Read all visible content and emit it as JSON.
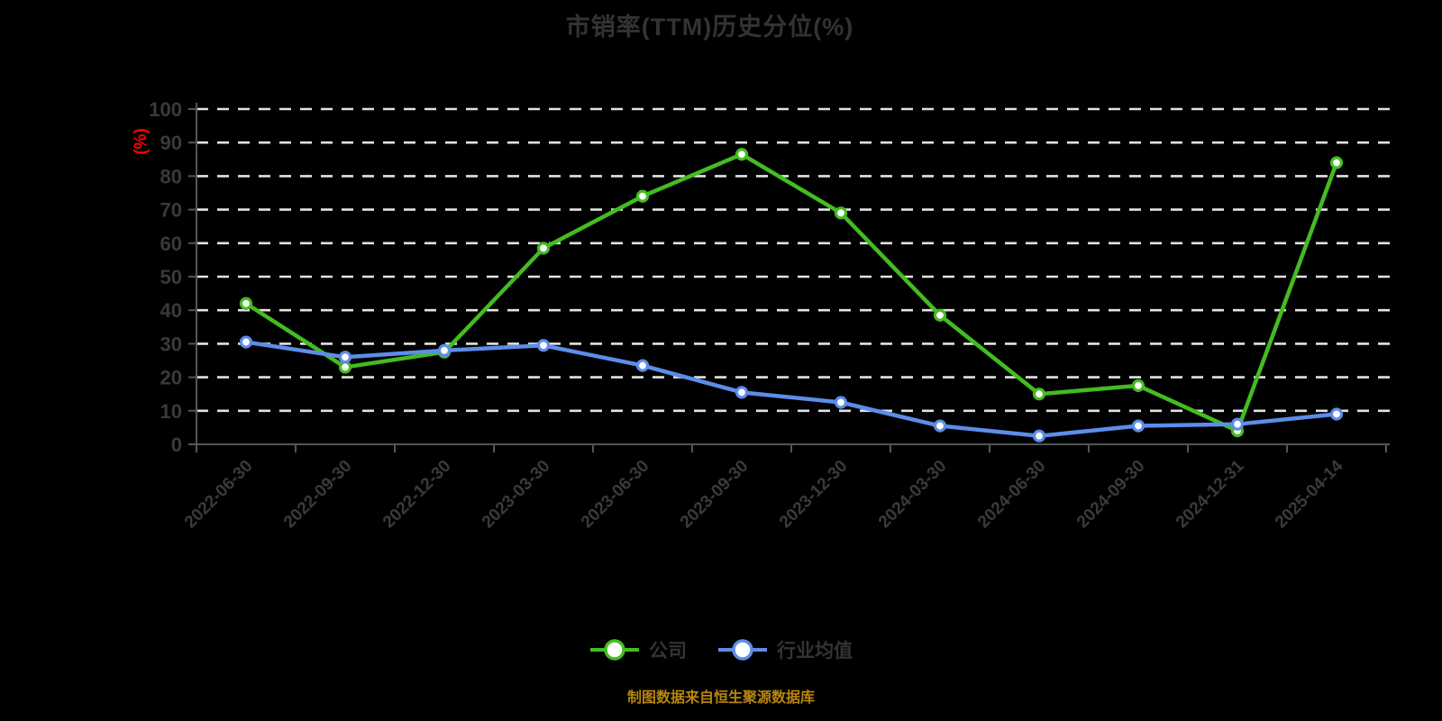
{
  "title": "市销率(TTM)历史分位(%)",
  "y_axis_unit": "(%)",
  "caption": "制图数据来自恒生聚源数据库",
  "colors": {
    "company_green": "#43BC21",
    "industry_blue": "#5C8DE8",
    "unit_label_red": "#FF0000",
    "caption_gold": "#B8860B",
    "gridline": "#E2E2E2",
    "axis": "#555555",
    "tick_text": "#3A3A3A"
  },
  "legend": {
    "items": [
      {
        "label": "公司",
        "color": "#43BC21"
      },
      {
        "label": "行业均值",
        "color": "#5C8DE8"
      }
    ]
  },
  "chart_data": {
    "type": "line",
    "title": "市销率(TTM)历史分位(%)",
    "xlabel": "",
    "ylabel": "(%)",
    "ylim": [
      0,
      100
    ],
    "y_ticks": [
      0,
      10,
      20,
      30,
      40,
      50,
      60,
      70,
      80,
      90,
      100
    ],
    "grid": "horizontal-dashed",
    "legend_position": "bottom",
    "categories": [
      "2022-06-30",
      "2022-09-30",
      "2022-12-30",
      "2023-03-30",
      "2023-06-30",
      "2023-09-30",
      "2023-12-30",
      "2024-03-30",
      "2024-06-30",
      "2024-09-30",
      "2024-12-31",
      "2025-04-14"
    ],
    "series": [
      {
        "name": "公司",
        "color": "#43BC21",
        "values": [
          42,
          23,
          27.5,
          58.5,
          74,
          86.5,
          69,
          38.5,
          15,
          17.5,
          4,
          84
        ]
      },
      {
        "name": "行业均值",
        "color": "#5C8DE8",
        "values": [
          30.5,
          26,
          28,
          29.5,
          23.5,
          15.5,
          12.5,
          5.5,
          2.5,
          5.5,
          6,
          9
        ]
      }
    ]
  }
}
